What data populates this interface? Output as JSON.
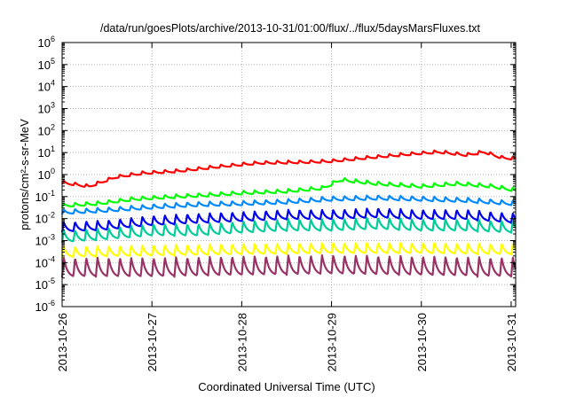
{
  "chart_data": {
    "type": "line",
    "title": "/data/run/goesPlots/archive/2013-10-31/01:00/flux/../flux/5daysMarsFluxes.txt",
    "xlabel": "Coordinated Universal Time (UTC)",
    "ylabel": "protons/cm²-s-sr-MeV",
    "x_ticks": [
      "2013-10-26",
      "2013-10-27",
      "2013-10-28",
      "2013-10-29",
      "2013-10-30",
      "2013-10-31"
    ],
    "xlim": [
      0,
      5.05
    ],
    "y_scale": "log",
    "ylim": [
      1e-06,
      1000000.0
    ],
    "y_ticks": [
      {
        "base": "10",
        "exp": "-6"
      },
      {
        "base": "10",
        "exp": "-5"
      },
      {
        "base": "10",
        "exp": "-4"
      },
      {
        "base": "10",
        "exp": "-3"
      },
      {
        "base": "10",
        "exp": "-2"
      },
      {
        "base": "10",
        "exp": "-1"
      },
      {
        "base": "10",
        "exp": "0"
      },
      {
        "base": "10",
        "exp": "1"
      },
      {
        "base": "10",
        "exp": "2"
      },
      {
        "base": "10",
        "exp": "3"
      },
      {
        "base": "10",
        "exp": "4"
      },
      {
        "base": "10",
        "exp": "5"
      },
      {
        "base": "10",
        "exp": "6"
      }
    ],
    "grid": true,
    "series": [
      {
        "color": "#ff0000",
        "values": [
          [
            0.0,
            0.45
          ],
          [
            0.3,
            0.3
          ],
          [
            0.6,
            0.8
          ],
          [
            0.9,
            1.2
          ],
          [
            1.3,
            1.5
          ],
          [
            1.8,
            2.5
          ],
          [
            2.2,
            3.5
          ],
          [
            2.7,
            3.8
          ],
          [
            3.0,
            4.2
          ],
          [
            3.4,
            6.0
          ],
          [
            3.9,
            9.0
          ],
          [
            4.2,
            11.0
          ],
          [
            4.5,
            8.0
          ],
          [
            4.7,
            11.0
          ],
          [
            4.9,
            6.0
          ],
          [
            5.05,
            5.5
          ]
        ]
      },
      {
        "color": "#00ff00",
        "values": [
          [
            0.0,
            0.04
          ],
          [
            0.4,
            0.05
          ],
          [
            0.8,
            0.08
          ],
          [
            1.2,
            0.1
          ],
          [
            1.6,
            0.12
          ],
          [
            2.0,
            0.15
          ],
          [
            2.5,
            0.18
          ],
          [
            2.9,
            0.25
          ],
          [
            3.1,
            0.6
          ],
          [
            3.5,
            0.4
          ],
          [
            4.0,
            0.3
          ],
          [
            4.4,
            0.4
          ],
          [
            4.8,
            0.3
          ],
          [
            5.05,
            0.2
          ]
        ]
      },
      {
        "color": "#0088ff",
        "values": [
          [
            0.0,
            0.02
          ],
          [
            0.5,
            0.025
          ],
          [
            1.0,
            0.035
          ],
          [
            1.5,
            0.045
          ],
          [
            2.0,
            0.05
          ],
          [
            2.5,
            0.06
          ],
          [
            3.0,
            0.08
          ],
          [
            3.5,
            0.09
          ],
          [
            4.0,
            0.08
          ],
          [
            4.5,
            0.07
          ],
          [
            5.05,
            0.05
          ]
        ]
      },
      {
        "color": "#0000ee",
        "values": [
          [
            0.0,
            0.004
          ],
          [
            0.5,
            0.005
          ],
          [
            1.0,
            0.008
          ],
          [
            1.5,
            0.01
          ],
          [
            2.0,
            0.012
          ],
          [
            2.5,
            0.015
          ],
          [
            3.0,
            0.015
          ],
          [
            3.5,
            0.018
          ],
          [
            4.0,
            0.015
          ],
          [
            4.5,
            0.015
          ],
          [
            5.05,
            0.01
          ]
        ]
      },
      {
        "color": "#00cc99",
        "values": [
          [
            0.0,
            0.0015
          ],
          [
            0.5,
            0.002
          ],
          [
            1.0,
            0.003
          ],
          [
            1.5,
            0.003
          ],
          [
            2.0,
            0.004
          ],
          [
            2.5,
            0.005
          ],
          [
            3.0,
            0.005
          ],
          [
            3.5,
            0.006
          ],
          [
            4.0,
            0.005
          ],
          [
            4.5,
            0.005
          ],
          [
            5.05,
            0.004
          ]
        ]
      },
      {
        "color": "#ffff00",
        "values": [
          [
            0.0,
            0.0003
          ],
          [
            1.0,
            0.00035
          ],
          [
            2.0,
            0.0004
          ],
          [
            3.0,
            0.00045
          ],
          [
            4.0,
            0.00045
          ],
          [
            5.05,
            0.0004
          ]
        ]
      },
      {
        "color": "#993366",
        "values": [
          [
            0.0,
            6e-05
          ],
          [
            1.0,
            6e-05
          ],
          [
            2.0,
            7e-05
          ],
          [
            3.0,
            8e-05
          ],
          [
            4.0,
            7e-05
          ],
          [
            5.05,
            6e-05
          ]
        ]
      }
    ]
  }
}
